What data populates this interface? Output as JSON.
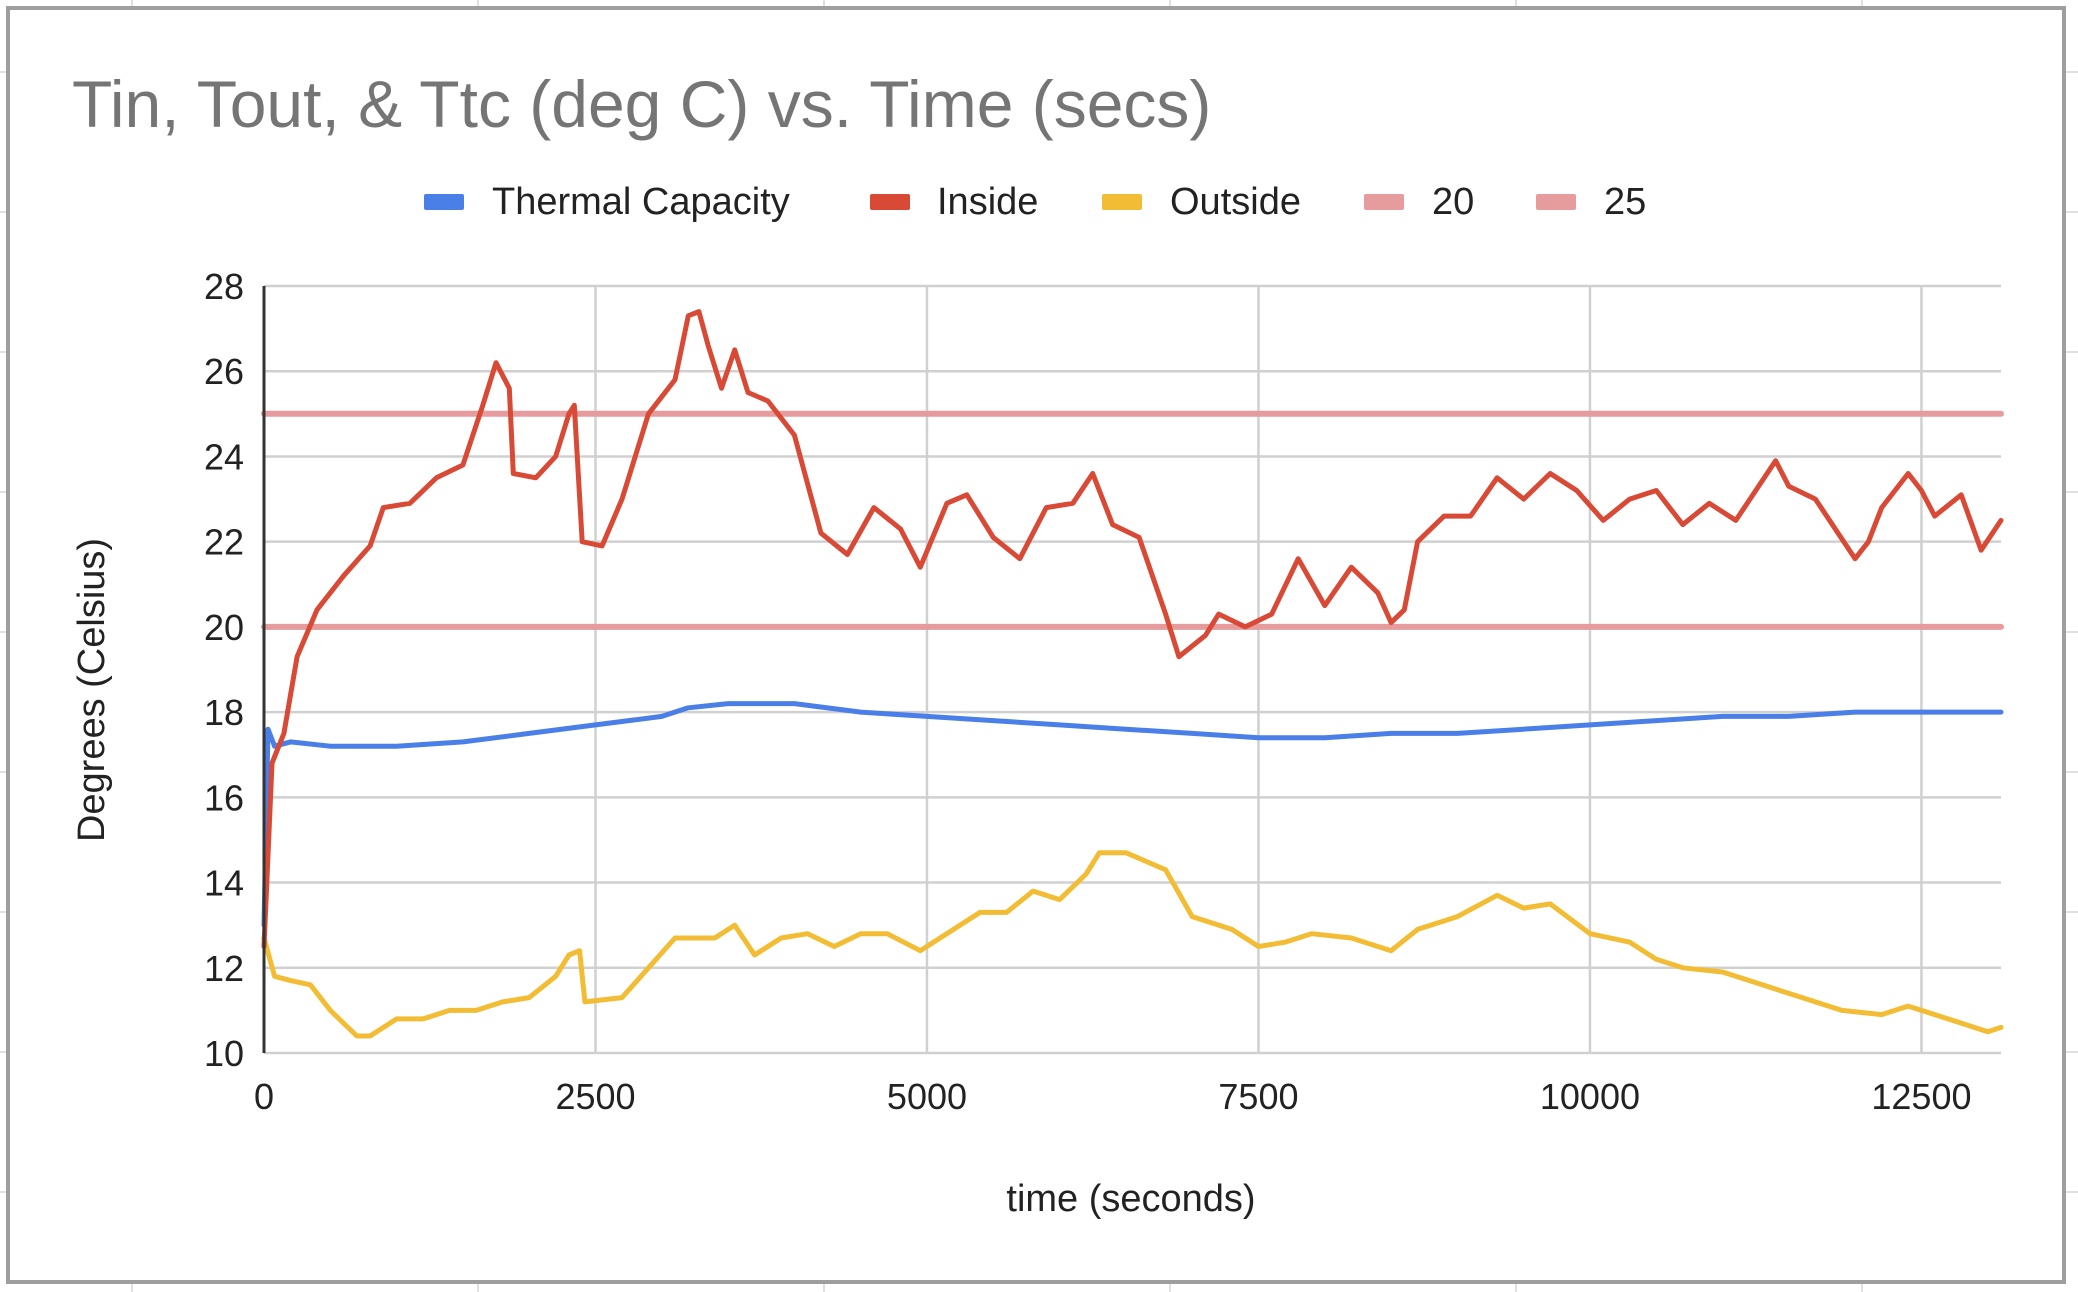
{
  "chart_data": {
    "type": "line",
    "title": "Tin, Tout, & Ttc (deg C) vs. Time (secs)",
    "xlabel": "time (seconds)",
    "ylabel": "Degrees (Celsius)",
    "xlim": [
      0,
      13100
    ],
    "ylim": [
      10,
      28
    ],
    "x_ticks": [
      "0",
      "2500",
      "5000",
      "7500",
      "10000",
      "12500"
    ],
    "y_ticks": [
      "10",
      "12",
      "14",
      "16",
      "18",
      "20",
      "22",
      "24",
      "26",
      "28"
    ],
    "grid": true,
    "legend_position": "top",
    "series": [
      {
        "name": "Thermal Capacity",
        "color": "#4a7fe8",
        "points": [
          [
            0,
            13
          ],
          [
            30,
            17.6
          ],
          [
            80,
            17.2
          ],
          [
            200,
            17.3
          ],
          [
            500,
            17.2
          ],
          [
            1000,
            17.2
          ],
          [
            1500,
            17.3
          ],
          [
            2000,
            17.5
          ],
          [
            2500,
            17.7
          ],
          [
            3000,
            17.9
          ],
          [
            3200,
            18.1
          ],
          [
            3500,
            18.2
          ],
          [
            4000,
            18.2
          ],
          [
            4500,
            18.0
          ],
          [
            5000,
            17.9
          ],
          [
            5500,
            17.8
          ],
          [
            6000,
            17.7
          ],
          [
            6500,
            17.6
          ],
          [
            7000,
            17.5
          ],
          [
            7500,
            17.4
          ],
          [
            8000,
            17.4
          ],
          [
            8500,
            17.5
          ],
          [
            9000,
            17.5
          ],
          [
            9500,
            17.6
          ],
          [
            10000,
            17.7
          ],
          [
            10500,
            17.8
          ],
          [
            11000,
            17.9
          ],
          [
            11500,
            17.9
          ],
          [
            12000,
            18.0
          ],
          [
            12500,
            18.0
          ],
          [
            13100,
            18.0
          ]
        ]
      },
      {
        "name": "Inside",
        "color": "#d94a36",
        "points": [
          [
            0,
            12.5
          ],
          [
            60,
            16.8
          ],
          [
            150,
            17.5
          ],
          [
            250,
            19.3
          ],
          [
            400,
            20.4
          ],
          [
            600,
            21.2
          ],
          [
            800,
            21.9
          ],
          [
            900,
            22.8
          ],
          [
            1100,
            22.9
          ],
          [
            1300,
            23.5
          ],
          [
            1500,
            23.8
          ],
          [
            1650,
            25.2
          ],
          [
            1750,
            26.2
          ],
          [
            1850,
            25.6
          ],
          [
            1880,
            23.6
          ],
          [
            2050,
            23.5
          ],
          [
            2200,
            24.0
          ],
          [
            2300,
            25.0
          ],
          [
            2340,
            25.2
          ],
          [
            2400,
            22.0
          ],
          [
            2550,
            21.9
          ],
          [
            2700,
            23.0
          ],
          [
            2900,
            25.0
          ],
          [
            3100,
            25.8
          ],
          [
            3200,
            27.3
          ],
          [
            3280,
            27.4
          ],
          [
            3350,
            26.6
          ],
          [
            3450,
            25.6
          ],
          [
            3550,
            26.5
          ],
          [
            3650,
            25.5
          ],
          [
            3800,
            25.3
          ],
          [
            4000,
            24.5
          ],
          [
            4200,
            22.2
          ],
          [
            4400,
            21.7
          ],
          [
            4600,
            22.8
          ],
          [
            4800,
            22.3
          ],
          [
            4950,
            21.4
          ],
          [
            5150,
            22.9
          ],
          [
            5300,
            23.1
          ],
          [
            5500,
            22.1
          ],
          [
            5700,
            21.6
          ],
          [
            5900,
            22.8
          ],
          [
            6100,
            22.9
          ],
          [
            6250,
            23.6
          ],
          [
            6400,
            22.4
          ],
          [
            6600,
            22.1
          ],
          [
            6700,
            21.2
          ],
          [
            6800,
            20.3
          ],
          [
            6900,
            19.3
          ],
          [
            7100,
            19.8
          ],
          [
            7200,
            20.3
          ],
          [
            7400,
            20.0
          ],
          [
            7600,
            20.3
          ],
          [
            7800,
            21.6
          ],
          [
            8000,
            20.5
          ],
          [
            8200,
            21.4
          ],
          [
            8400,
            20.8
          ],
          [
            8500,
            20.1
          ],
          [
            8600,
            20.4
          ],
          [
            8700,
            22.0
          ],
          [
            8900,
            22.6
          ],
          [
            9100,
            22.6
          ],
          [
            9300,
            23.5
          ],
          [
            9500,
            23.0
          ],
          [
            9700,
            23.6
          ],
          [
            9900,
            23.2
          ],
          [
            10100,
            22.5
          ],
          [
            10300,
            23.0
          ],
          [
            10500,
            23.2
          ],
          [
            10700,
            22.4
          ],
          [
            10900,
            22.9
          ],
          [
            11100,
            22.5
          ],
          [
            11400,
            23.9
          ],
          [
            11500,
            23.3
          ],
          [
            11700,
            23.0
          ],
          [
            12000,
            21.6
          ],
          [
            12100,
            22.0
          ],
          [
            12200,
            22.8
          ],
          [
            12400,
            23.6
          ],
          [
            12500,
            23.2
          ],
          [
            12600,
            22.6
          ],
          [
            12800,
            23.1
          ],
          [
            12950,
            21.8
          ],
          [
            13100,
            22.5
          ]
        ]
      },
      {
        "name": "Outside",
        "color": "#f2bd35",
        "points": [
          [
            0,
            12.7
          ],
          [
            80,
            11.8
          ],
          [
            200,
            11.7
          ],
          [
            350,
            11.6
          ],
          [
            500,
            11.0
          ],
          [
            700,
            10.4
          ],
          [
            800,
            10.4
          ],
          [
            1000,
            10.8
          ],
          [
            1200,
            10.8
          ],
          [
            1400,
            11.0
          ],
          [
            1600,
            11.0
          ],
          [
            1800,
            11.2
          ],
          [
            2000,
            11.3
          ],
          [
            2200,
            11.8
          ],
          [
            2300,
            12.3
          ],
          [
            2380,
            12.4
          ],
          [
            2420,
            11.2
          ],
          [
            2700,
            11.3
          ],
          [
            2900,
            12.0
          ],
          [
            3100,
            12.7
          ],
          [
            3400,
            12.7
          ],
          [
            3550,
            13.0
          ],
          [
            3700,
            12.3
          ],
          [
            3900,
            12.7
          ],
          [
            4100,
            12.8
          ],
          [
            4300,
            12.5
          ],
          [
            4500,
            12.8
          ],
          [
            4700,
            12.8
          ],
          [
            4950,
            12.4
          ],
          [
            5200,
            12.9
          ],
          [
            5400,
            13.3
          ],
          [
            5600,
            13.3
          ],
          [
            5800,
            13.8
          ],
          [
            6000,
            13.6
          ],
          [
            6200,
            14.2
          ],
          [
            6300,
            14.7
          ],
          [
            6500,
            14.7
          ],
          [
            6800,
            14.3
          ],
          [
            7000,
            13.2
          ],
          [
            7300,
            12.9
          ],
          [
            7500,
            12.5
          ],
          [
            7700,
            12.6
          ],
          [
            7900,
            12.8
          ],
          [
            8200,
            12.7
          ],
          [
            8500,
            12.4
          ],
          [
            8700,
            12.9
          ],
          [
            9000,
            13.2
          ],
          [
            9300,
            13.7
          ],
          [
            9500,
            13.4
          ],
          [
            9700,
            13.5
          ],
          [
            10000,
            12.8
          ],
          [
            10300,
            12.6
          ],
          [
            10500,
            12.2
          ],
          [
            10700,
            12.0
          ],
          [
            11000,
            11.9
          ],
          [
            11300,
            11.6
          ],
          [
            11600,
            11.3
          ],
          [
            11900,
            11.0
          ],
          [
            12200,
            10.9
          ],
          [
            12400,
            11.1
          ],
          [
            12700,
            10.8
          ],
          [
            13000,
            10.5
          ],
          [
            13100,
            10.6
          ]
        ]
      },
      {
        "name": "20",
        "color": "#e69c9c",
        "points": [
          [
            0,
            20
          ],
          [
            13100,
            20
          ]
        ]
      },
      {
        "name": "25",
        "color": "#e69c9c",
        "points": [
          [
            0,
            25
          ],
          [
            13100,
            25
          ]
        ]
      }
    ]
  }
}
